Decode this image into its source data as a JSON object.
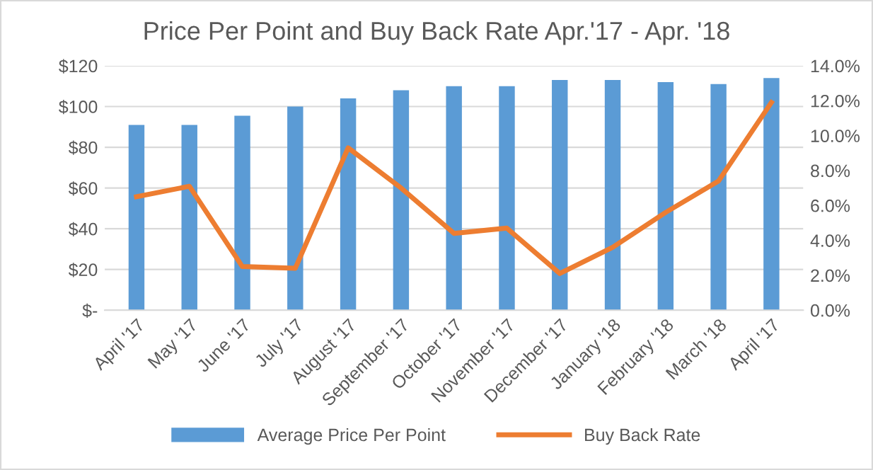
{
  "chart_data": {
    "type": "bar",
    "title": "Price Per Point and Buy Back Rate Apr.'17 - Apr. '18",
    "categories": [
      "April '17",
      "May '17",
      "June '17",
      "July '17",
      "August '17",
      "September '17",
      "October '17",
      "November '17",
      "December '17",
      "January '18",
      "February '18",
      "March '18",
      "April '17"
    ],
    "series": [
      {
        "name": "Average Price Per Point",
        "color": "#5b9bd5",
        "values": [
          91,
          91,
          95.5,
          100,
          104,
          108,
          110,
          110,
          113,
          113,
          112,
          111,
          114
        ]
      },
      {
        "name": "Buy Back Rate",
        "color": "#ed7d31",
        "type": "line",
        "axis": "y2",
        "values": [
          6.5,
          7.1,
          2.5,
          2.4,
          9.3,
          7.0,
          4.4,
          4.7,
          2.1,
          3.6,
          5.6,
          7.4,
          11.9
        ]
      }
    ],
    "ylim": [
      0,
      120
    ],
    "yticks": [
      {
        "value": 0,
        "label": "$-"
      },
      {
        "value": 20,
        "label": "$20"
      },
      {
        "value": 40,
        "label": "$40"
      },
      {
        "value": 60,
        "label": "$60"
      },
      {
        "value": 80,
        "label": "$80"
      },
      {
        "value": 100,
        "label": "$100"
      },
      {
        "value": 120,
        "label": "$120"
      }
    ],
    "y2lim": [
      0,
      14
    ],
    "y2ticks": [
      {
        "value": 0,
        "label": "0.0%"
      },
      {
        "value": 2,
        "label": "2.0%"
      },
      {
        "value": 4,
        "label": "4.0%"
      },
      {
        "value": 6,
        "label": "6.0%"
      },
      {
        "value": 8,
        "label": "8.0%"
      },
      {
        "value": 10,
        "label": "10.0%"
      },
      {
        "value": 12,
        "label": "12.0%"
      },
      {
        "value": 14,
        "label": "14.0%"
      }
    ],
    "grid": "y",
    "legend": "bottom"
  }
}
